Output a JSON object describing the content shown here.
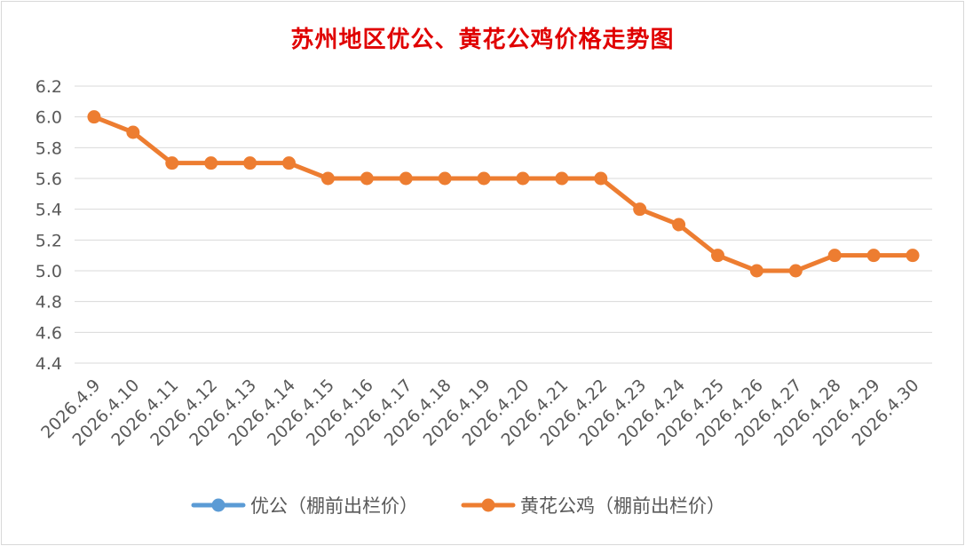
{
  "chart_data": {
    "type": "line",
    "title": "苏州地区优公、黄花公鸡价格走势图",
    "xlabel": "",
    "ylabel": "",
    "ylim": [
      4.4,
      6.2
    ],
    "yticks": [
      "6.2",
      "6.0",
      "5.8",
      "5.6",
      "5.4",
      "5.2",
      "5.0",
      "4.8",
      "4.6",
      "4.4"
    ],
    "grid": true,
    "legend_position": "bottom",
    "categories": [
      "2026.4.9",
      "2026.4.10",
      "2026.4.11",
      "2026.4.12",
      "2026.4.13",
      "2026.4.14",
      "2026.4.15",
      "2026.4.16",
      "2026.4.17",
      "2026.4.18",
      "2026.4.19",
      "2026.4.20",
      "2026.4.21",
      "2026.4.22",
      "2026.4.23",
      "2026.4.24",
      "2026.4.25",
      "2026.4.26",
      "2026.4.27",
      "2026.4.28",
      "2026.4.29",
      "2026.4.30"
    ],
    "series": [
      {
        "name": "优公（棚前出栏价）",
        "color": "#5b9bd5",
        "values": [
          null,
          null,
          null,
          null,
          null,
          null,
          null,
          null,
          null,
          null,
          null,
          null,
          null,
          null,
          null,
          null,
          null,
          null,
          null,
          null,
          null,
          null
        ]
      },
      {
        "name": "黄花公鸡（棚前出栏价）",
        "color": "#ed7d31",
        "values": [
          6.0,
          5.9,
          5.7,
          5.7,
          5.7,
          5.7,
          5.6,
          5.6,
          5.6,
          5.6,
          5.6,
          5.6,
          5.6,
          5.6,
          5.4,
          5.3,
          5.1,
          5.0,
          5.0,
          5.1,
          5.1,
          5.1
        ]
      }
    ]
  }
}
